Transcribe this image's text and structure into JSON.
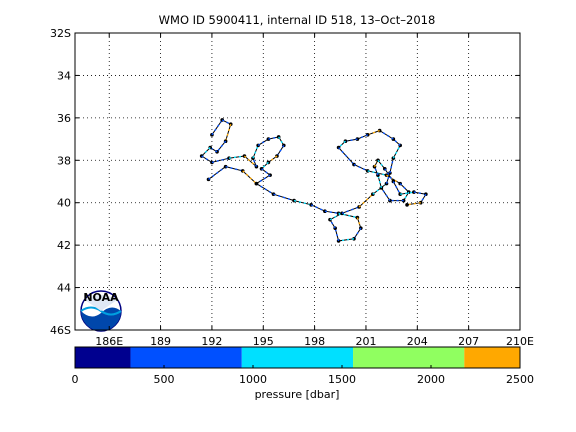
{
  "title": "WMO ID 5900411, internal ID 518, 13–Oct–2018",
  "chart_data": {
    "type": "scatter",
    "title": "WMO ID 5900411, internal ID 518, 13–Oct–2018",
    "x_ticks": [
      186,
      189,
      192,
      195,
      198,
      201,
      204,
      207,
      210
    ],
    "x_tick_labels": [
      "186E",
      "189",
      "192",
      "195",
      "198",
      "201",
      "204",
      "207",
      "210E"
    ],
    "xlim": [
      184,
      210
    ],
    "y_ticks": [
      32,
      34,
      36,
      38,
      40,
      42,
      44,
      46
    ],
    "y_tick_labels": [
      "32S",
      "34",
      "36",
      "38",
      "40",
      "42",
      "44",
      "46S"
    ],
    "ylim": [
      32,
      46
    ],
    "grid": true,
    "track": [
      [
        191.8,
        38.9
      ],
      [
        192.8,
        38.3
      ],
      [
        193.8,
        38.5
      ],
      [
        194.6,
        39.1
      ],
      [
        195.6,
        39.6
      ],
      [
        196.8,
        39.9
      ],
      [
        197.8,
        40.1
      ],
      [
        198.6,
        40.4
      ],
      [
        199.4,
        40.5
      ],
      [
        200.5,
        40.7
      ],
      [
        200.7,
        41.2
      ],
      [
        200.3,
        41.7
      ],
      [
        199.4,
        41.8
      ],
      [
        199.2,
        41.2
      ],
      [
        198.9,
        40.8
      ],
      [
        199.6,
        40.5
      ],
      [
        200.6,
        40.2
      ],
      [
        201.4,
        39.6
      ],
      [
        202.2,
        39.1
      ],
      [
        202.4,
        38.6
      ],
      [
        202.6,
        37.9
      ],
      [
        203.0,
        37.3
      ],
      [
        202.6,
        37.0
      ],
      [
        201.8,
        36.6
      ],
      [
        201.1,
        36.8
      ],
      [
        200.5,
        37.0
      ],
      [
        199.8,
        37.1
      ],
      [
        199.4,
        37.4
      ],
      [
        200.3,
        38.2
      ],
      [
        201.1,
        38.5
      ],
      [
        202.2,
        38.7
      ],
      [
        203.0,
        39.1
      ],
      [
        203.5,
        39.5
      ],
      [
        203.2,
        39.9
      ],
      [
        202.4,
        39.9
      ],
      [
        201.9,
        39.3
      ],
      [
        201.7,
        38.7
      ],
      [
        201.5,
        38.3
      ],
      [
        201.7,
        38.0
      ],
      [
        202.1,
        38.4
      ],
      [
        202.6,
        39.0
      ],
      [
        203.0,
        39.6
      ],
      [
        203.8,
        39.5
      ],
      [
        204.5,
        39.6
      ],
      [
        204.2,
        40.0
      ],
      [
        203.4,
        40.1
      ]
    ],
    "loop_west": [
      [
        192.0,
        36.8
      ],
      [
        192.6,
        36.1
      ],
      [
        193.1,
        36.3
      ],
      [
        192.8,
        37.1
      ],
      [
        192.3,
        37.6
      ],
      [
        191.9,
        37.4
      ],
      [
        191.4,
        37.8
      ],
      [
        192.0,
        38.1
      ],
      [
        193.0,
        37.9
      ],
      [
        193.9,
        37.8
      ],
      [
        194.6,
        38.3
      ],
      [
        194.4,
        37.9
      ],
      [
        194.7,
        37.3
      ],
      [
        195.3,
        37.0
      ],
      [
        195.9,
        36.9
      ],
      [
        196.2,
        37.3
      ],
      [
        195.8,
        37.8
      ],
      [
        195.3,
        38.1
      ],
      [
        194.9,
        38.4
      ],
      [
        195.4,
        38.7
      ],
      [
        194.6,
        39.1
      ]
    ],
    "colorbar": {
      "label": "pressure [dbar]",
      "ticks": [
        0,
        500,
        1000,
        1500,
        2000,
        2500
      ],
      "bins": [
        {
          "from": 0,
          "to": 312,
          "color": "#00008f"
        },
        {
          "from": 312,
          "to": 937,
          "color": "#0050ff"
        },
        {
          "from": 937,
          "to": 1562,
          "color": "#00e0ff"
        },
        {
          "from": 1562,
          "to": 2187,
          "color": "#90ff60"
        },
        {
          "from": 2187,
          "to": 2500,
          "color": "#ffa800"
        }
      ]
    }
  },
  "logo": {
    "name": "NOAA",
    "text": "NOAA"
  }
}
